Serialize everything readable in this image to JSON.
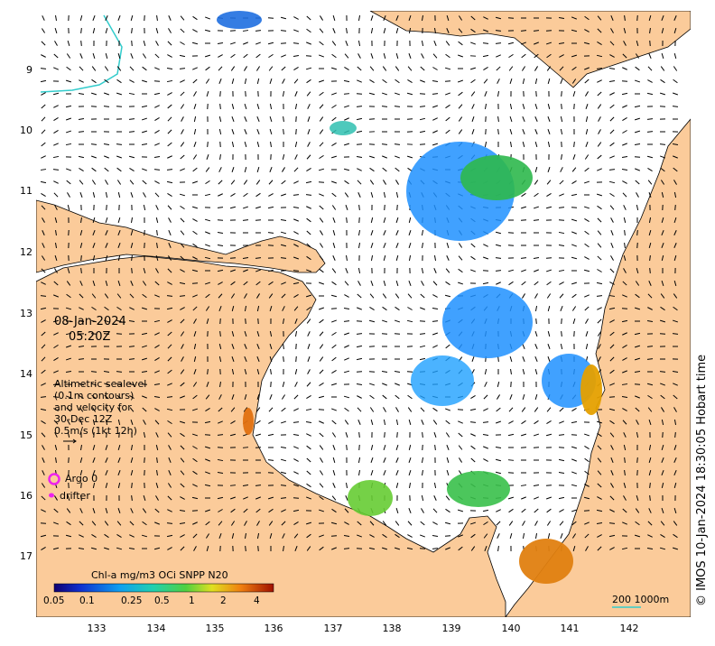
{
  "map": {
    "date": "08-Jan-2024",
    "time": "05:20Z",
    "lat_labels": [
      "9",
      "10",
      "11",
      "12",
      "13",
      "14",
      "15",
      "16",
      "17"
    ],
    "lon_labels": [
      "133",
      "134",
      "135",
      "136",
      "137",
      "138",
      "139",
      "140",
      "141",
      "142"
    ],
    "legend_lines": [
      "Altimetric sealevel",
      "(0.1m contours)",
      "and velocity for",
      "30-Dec 12Z",
      "0.5m/s (1kt 12h)"
    ],
    "argo_label": "Argo 0",
    "drifter_label": "drifter",
    "colorbar_title": "Chl-a mg/m3 OCi SNPP N20",
    "colorbar_ticks": [
      "0.05",
      "0.1",
      "0.25",
      "0.5",
      "1",
      "2",
      "4"
    ],
    "scale_label": "200  1000m",
    "copyright": "© IMOS 10-Jan-2024 18:30:05 Hobart time",
    "colors": {
      "land": "#fbcb9a",
      "sea": "#ffffff",
      "argo": "#ee22ee",
      "drifter": "#ee22ee",
      "coast": "#000000",
      "contour": "#33cccc"
    }
  }
}
